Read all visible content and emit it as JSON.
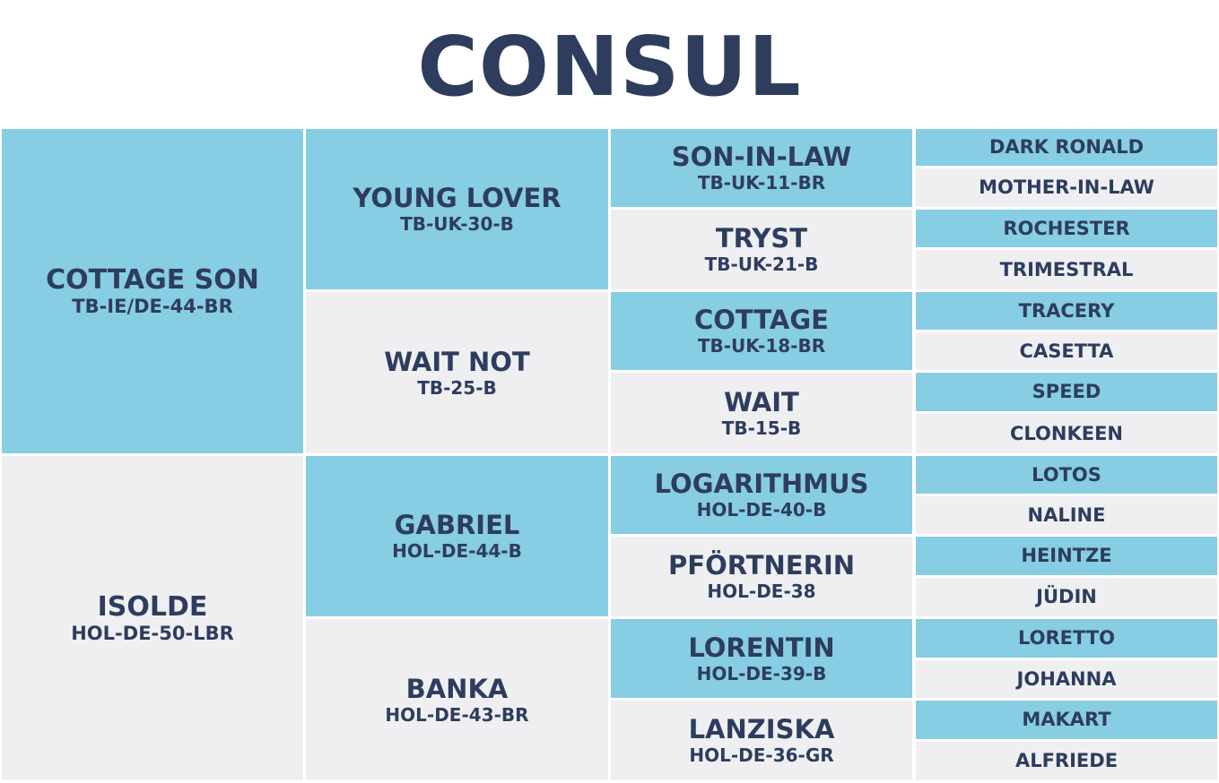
{
  "title": "CONSUL",
  "gen1": [
    {
      "name": "COTTAGE SON",
      "reg": "TB-IE/DE-44-BR"
    },
    {
      "name": "ISOLDE",
      "reg": "HOL-DE-50-LBR"
    }
  ],
  "gen2": [
    {
      "name": "YOUNG LOVER",
      "reg": "TB-UK-30-B"
    },
    {
      "name": "WAIT NOT",
      "reg": "TB-25-B"
    },
    {
      "name": "GABRIEL",
      "reg": "HOL-DE-44-B"
    },
    {
      "name": "BANKA",
      "reg": "HOL-DE-43-BR"
    }
  ],
  "gen3": [
    {
      "name": "SON-IN-LAW",
      "reg": "TB-UK-11-BR"
    },
    {
      "name": "TRYST",
      "reg": "TB-UK-21-B"
    },
    {
      "name": "COTTAGE",
      "reg": "TB-UK-18-BR"
    },
    {
      "name": "WAIT",
      "reg": "TB-15-B"
    },
    {
      "name": "LOGARITHMUS",
      "reg": "HOL-DE-40-B"
    },
    {
      "name": "PFÖRTNERIN",
      "reg": "HOL-DE-38"
    },
    {
      "name": "LORENTIN",
      "reg": "HOL-DE-39-B"
    },
    {
      "name": "LANZISKA",
      "reg": "HOL-DE-36-GR"
    }
  ],
  "gen4": [
    {
      "name": "DARK RONALD"
    },
    {
      "name": "MOTHER-IN-LAW"
    },
    {
      "name": "ROCHESTER"
    },
    {
      "name": "TRIMESTRAL"
    },
    {
      "name": "TRACERY"
    },
    {
      "name": "CASETTA"
    },
    {
      "name": "SPEED"
    },
    {
      "name": "CLONKEEN"
    },
    {
      "name": "LOTOS"
    },
    {
      "name": "NALINE"
    },
    {
      "name": "HEINTZE"
    },
    {
      "name": "JÜDIN"
    },
    {
      "name": "LORETTO"
    },
    {
      "name": "JOHANNA"
    },
    {
      "name": "MAKART"
    },
    {
      "name": "ALFRIEDE"
    }
  ],
  "colors": {
    "sire": "#87cde3",
    "dam": "#efeff2",
    "text": "#2e3d5e"
  }
}
